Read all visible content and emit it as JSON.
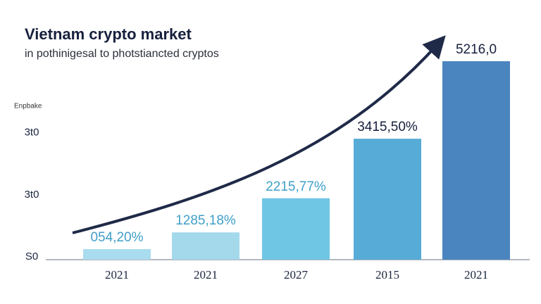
{
  "chart_data": {
    "type": "bar",
    "title": "Vietnam crypto market",
    "subtitle": "in pothinigesal to photstiancted cryptos",
    "ylabel": "Enpbake",
    "categories": [
      "2021",
      "2021",
      "2027",
      "2015",
      "2021"
    ],
    "values": [
      17,
      44,
      99,
      195,
      320
    ],
    "annotations": [
      "054,20%",
      "1285,18%",
      "2215,77%",
      "3415,50%",
      "5216,0"
    ],
    "colors": [
      "#a9dcee",
      "#a4d9ec",
      "#6fc5e4",
      "#56acd7",
      "#4a85bf"
    ],
    "ylim": [
      0,
      320
    ],
    "yticks": [
      {
        "value": 0,
        "label": "S0"
      },
      {
        "value": 100,
        "label": "3t0"
      },
      {
        "value": 200,
        "label": "3t0"
      }
    ],
    "grid": false
  }
}
